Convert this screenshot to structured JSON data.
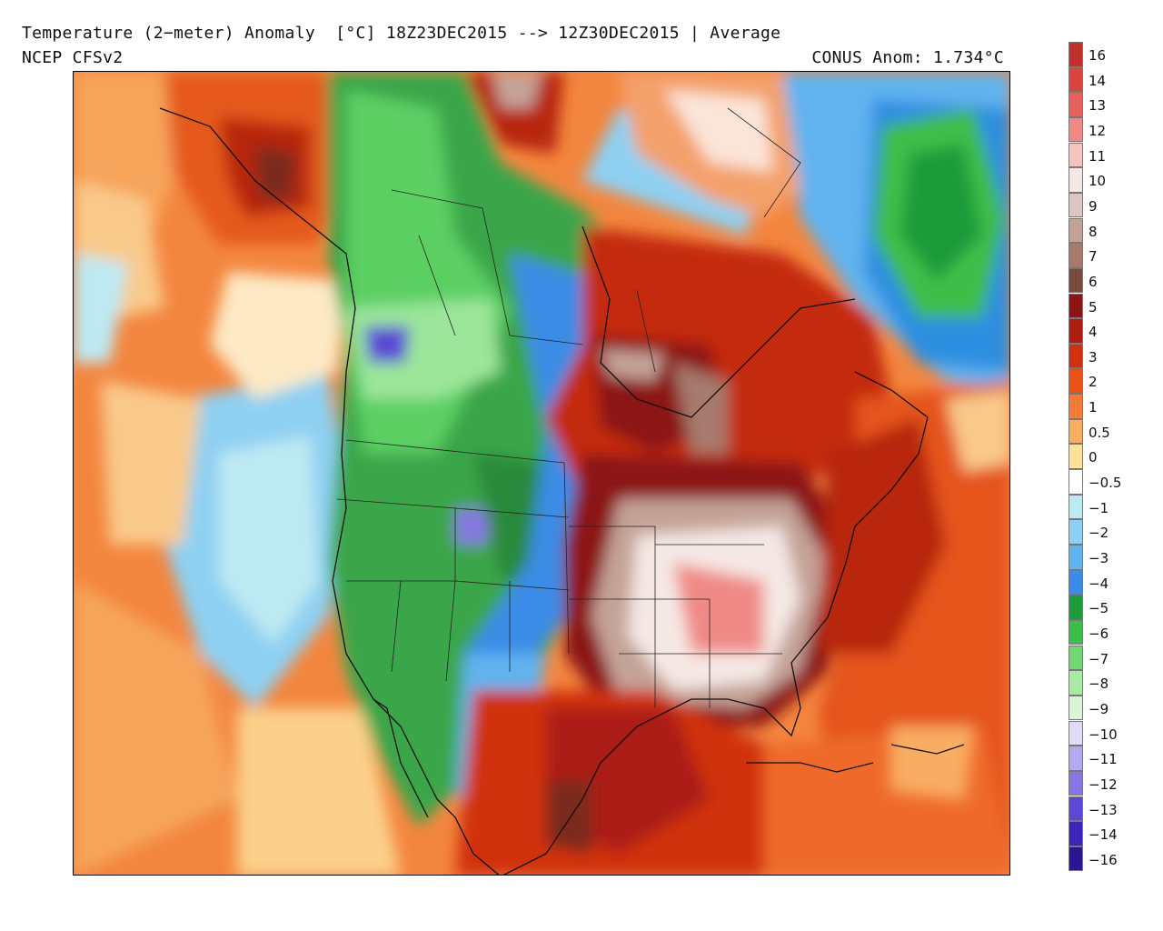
{
  "header": {
    "line1": "Temperature (2−meter) Anomaly  [°C] 18Z23DEC2015 --> 12Z30DEC2015 | Average",
    "line2": "NCEP CFSv2",
    "stat": "CONUS Anom: 1.734°C"
  },
  "colorbar": {
    "labels": [
      "16",
      "14",
      "13",
      "12",
      "11",
      "10",
      "9",
      "8",
      "7",
      "6",
      "5",
      "4",
      "3",
      "2",
      "1",
      "0.5",
      "0",
      "−0.5",
      "−1",
      "−2",
      "−3",
      "−4",
      "−5",
      "−6",
      "−7",
      "−8",
      "−9",
      "−10",
      "−11",
      "−12",
      "−13",
      "−14",
      "−16"
    ],
    "colors": [
      "#c0302c",
      "#d9453f",
      "#e5605a",
      "#f08a86",
      "#f6c4c0",
      "#f5e8e4",
      "#dcc6bf",
      "#c4a397",
      "#a67a6c",
      "#7a4a3c",
      "#8c1414",
      "#ac1f12",
      "#d0300e",
      "#ea5018",
      "#f47a3a",
      "#f9ad62",
      "#fce29a",
      "#ffffff",
      "#bde9f3",
      "#8ed0f2",
      "#60b3ef",
      "#3a8ce6",
      "#1e9b3a",
      "#3fbd4a",
      "#72d873",
      "#a8eaa3",
      "#d9f4d6",
      "#e0dcf6",
      "#b2aaee",
      "#8677e2",
      "#5c48d6",
      "#3a25b8",
      "#2b1592"
    ]
  },
  "map": {
    "features": [
      "alaska-warm-anomaly",
      "western-north-america-cold-anomaly",
      "eastern-us-strong-warm-anomaly",
      "greenland-cold-anomaly",
      "gulf-of-mexico-warm-anomaly",
      "pacific-neutral-to-cool"
    ]
  }
}
